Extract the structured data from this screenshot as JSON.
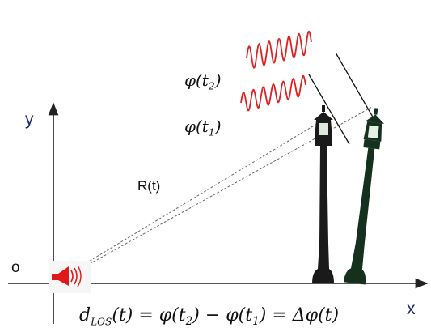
{
  "axes": {
    "y_label": "y",
    "x_label": "x",
    "origin_label": "o"
  },
  "range_label": "R(t)",
  "phase_labels": {
    "phi_t2": {
      "symbol": "φ(t",
      "sub": "2",
      "close": ")"
    },
    "phi_t1": {
      "symbol": "φ(t",
      "sub": "1",
      "close": ")"
    }
  },
  "equation": {
    "lhs_symbol": "d",
    "lhs_sub": "LOS",
    "lhs_arg": "(t) = φ(t",
    "t2_sub": "2",
    "mid": ") − φ(t",
    "t1_sub": "1",
    "rhs": ") = Δφ(t)"
  },
  "colors": {
    "axis": "#222222",
    "wave": "#e02020",
    "radar": "#e01818",
    "lamp_near": "#1a1a1a",
    "lamp_far": "#16301e",
    "label_axis": "#1a2a6c"
  }
}
